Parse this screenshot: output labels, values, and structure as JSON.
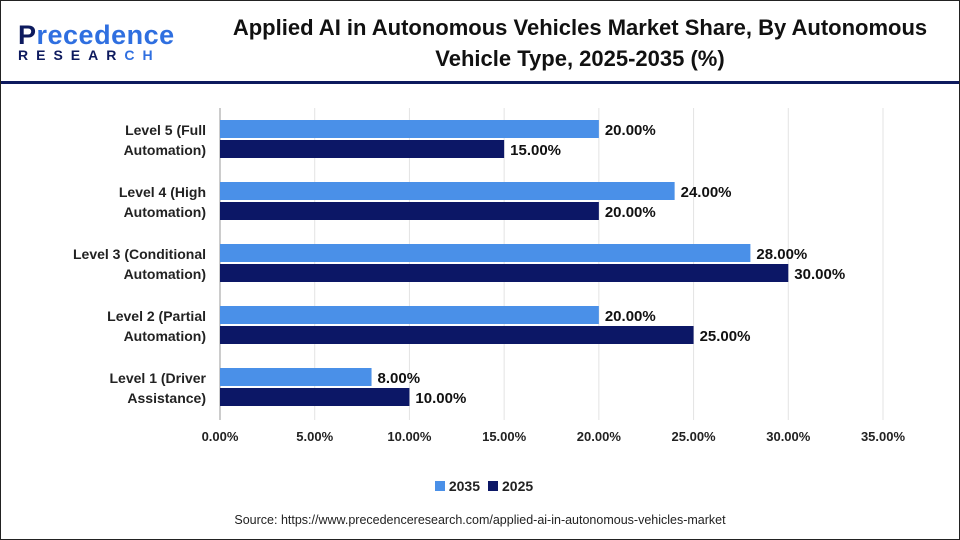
{
  "logo": {
    "line1_a": "P",
    "line1_b": "recedence",
    "line2_a": "RESEAR",
    "line2_b": "CH"
  },
  "title": "Applied AI in Autonomous Vehicles Market Share, By Autonomous Vehicle Type, 2025-2035 (%)",
  "source": "Source: https://www.precedenceresearch.com/applied-ai-in-autonomous-vehicles-market",
  "chart_data": {
    "type": "bar",
    "orientation": "horizontal",
    "title": "Applied AI in Autonomous Vehicles Market Share, By Autonomous Vehicle Type, 2025-2035 (%)",
    "categories": [
      [
        "Level 5 (Full",
        "Automation)"
      ],
      [
        "Level 4 (High",
        "Automation)"
      ],
      [
        "Level 3 (Conditional",
        "Automation)"
      ],
      [
        "Level 2 (Partial",
        "Automation)"
      ],
      [
        "Level 1 (Driver",
        "Assistance)"
      ]
    ],
    "series": [
      {
        "name": "2035",
        "color": "#4a90e8",
        "values": [
          20,
          24,
          28,
          20,
          8
        ]
      },
      {
        "name": "2025",
        "color": "#0c1766",
        "values": [
          15,
          20,
          30,
          25,
          10
        ]
      }
    ],
    "xlim": [
      0,
      35
    ],
    "ticks": [
      "0.00%",
      "5.00%",
      "10.00%",
      "15.00%",
      "20.00%",
      "25.00%",
      "30.00%",
      "35.00%"
    ],
    "grid": true,
    "legend": "bottom"
  }
}
